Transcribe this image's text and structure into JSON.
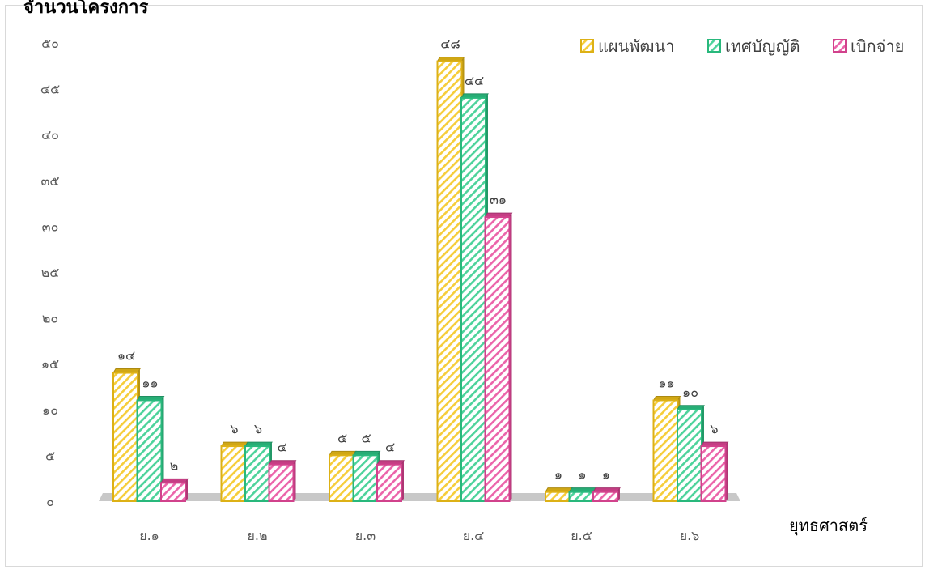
{
  "chart_data": {
    "type": "bar",
    "title": "",
    "ylabel": "จำนวนโครงการ",
    "xlabel": "ยุทธศาสตร์",
    "categories": [
      "ย.๑",
      "ย.๒",
      "ย.๓",
      "ย.๔",
      "ย.๕",
      "ย.๖"
    ],
    "series": [
      {
        "name": "แผนพัฒนา",
        "values": [
          14,
          6,
          5,
          48,
          1,
          11
        ],
        "labels": [
          "๑๔",
          "๖",
          "๕",
          "๔๘",
          "๑",
          "๑๑"
        ],
        "color": "#f5c518"
      },
      {
        "name": "เทศบัญญัติ",
        "values": [
          11,
          6,
          5,
          44,
          1,
          10
        ],
        "labels": [
          "๑๑",
          "๖",
          "๕",
          "๔๔",
          "๑",
          "๑๐"
        ],
        "color": "#2ecc8a"
      },
      {
        "name": "เบิกจ่าย",
        "values": [
          2,
          4,
          4,
          31,
          1,
          6
        ],
        "labels": [
          "๒",
          "๔",
          "๔",
          "๓๑",
          "๑",
          "๖"
        ],
        "color": "#e8499b"
      }
    ],
    "ylim": [
      0,
      50
    ],
    "yticks": [
      0,
      5,
      10,
      15,
      20,
      25,
      30,
      35,
      40,
      45,
      50
    ],
    "ytick_labels": [
      "๐",
      "๕",
      "๑๐",
      "๑๕",
      "๒๐",
      "๒๕",
      "๓๐",
      "๓๕",
      "๔๐",
      "๔๕",
      "๕๐"
    ],
    "grid": false,
    "legend_position": "top-right"
  }
}
